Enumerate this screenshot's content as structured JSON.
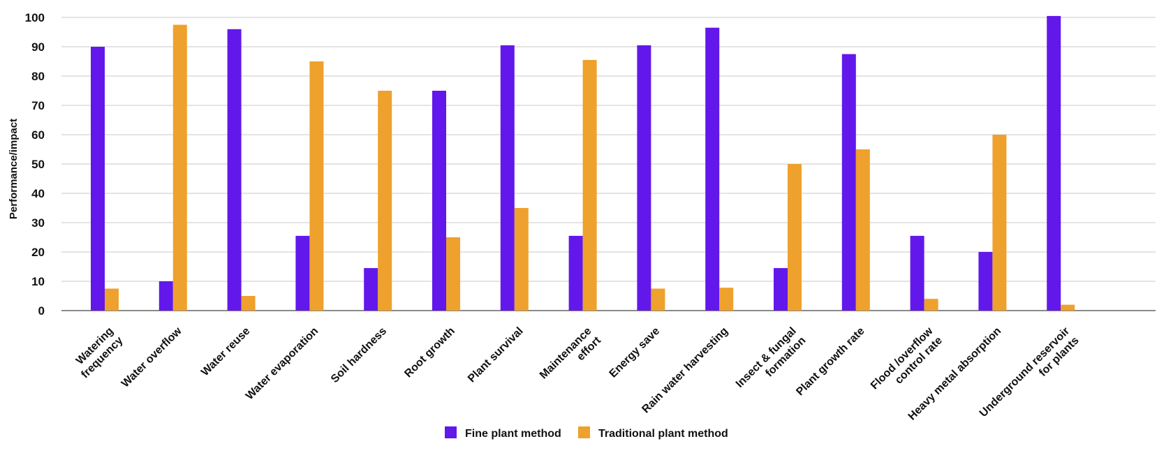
{
  "chart_data": {
    "type": "bar",
    "title": "",
    "xlabel": "",
    "ylabel": "Performance/impact",
    "ylim": [
      0,
      100
    ],
    "yticks": [
      0,
      10,
      20,
      30,
      40,
      50,
      60,
      70,
      80,
      90,
      100
    ],
    "grid": true,
    "legend_position": "bottom-center",
    "categories": [
      [
        "Watering",
        "frequency"
      ],
      [
        "Water overflow"
      ],
      [
        "Water reuse"
      ],
      [
        "Water evaporation"
      ],
      [
        "Soil hardness"
      ],
      [
        "Root growth"
      ],
      [
        "Plant survival"
      ],
      [
        "Maintenance",
        "effort"
      ],
      [
        "Energy save"
      ],
      [
        "Rain water harvesting"
      ],
      [
        "Insect & fungal",
        "formation"
      ],
      [
        "Plant growth rate"
      ],
      [
        "Flood /overflow",
        "control rate"
      ],
      [
        "Heavy metal absorption"
      ],
      [
        "Underground reservoir",
        "for plants"
      ]
    ],
    "series": [
      {
        "name": "Fine plant method",
        "color": "#6218ea",
        "values": [
          90,
          10,
          96,
          25.5,
          14.5,
          75,
          90.5,
          25.5,
          90.5,
          96.5,
          14.5,
          87.5,
          25.5,
          20,
          100.5
        ]
      },
      {
        "name": "Traditional plant method",
        "color": "#eea12c",
        "values": [
          7.5,
          97.5,
          5,
          85,
          75,
          25,
          35,
          85.5,
          7.5,
          7.8,
          50,
          55,
          4,
          60,
          2
        ]
      }
    ]
  }
}
